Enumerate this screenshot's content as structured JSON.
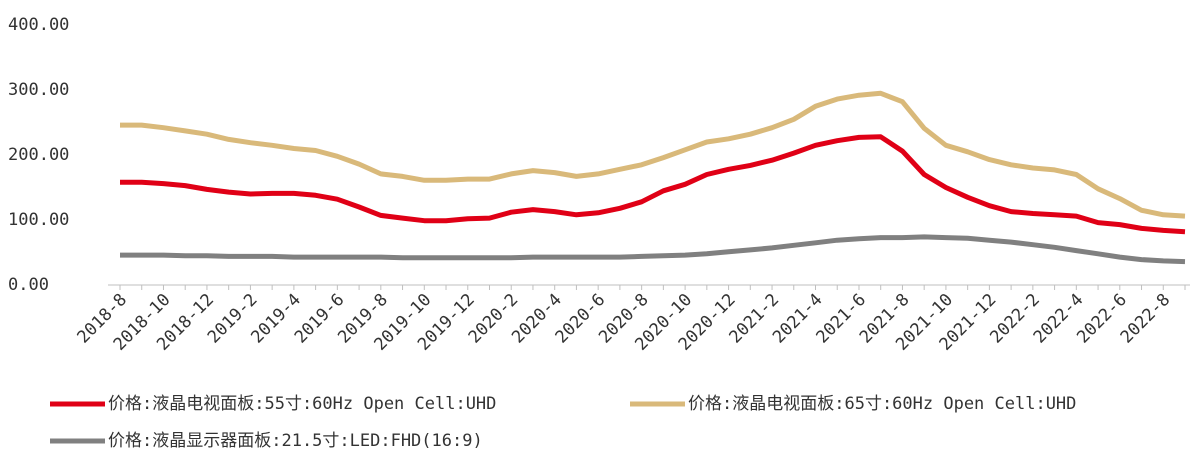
{
  "chart_data": {
    "type": "line",
    "categories": [
      "2018-8",
      null,
      "2018-10",
      null,
      "2018-12",
      null,
      "2019-2",
      null,
      "2019-4",
      null,
      "2019-6",
      null,
      "2019-8",
      null,
      "2019-10",
      null,
      "2019-12",
      null,
      "2020-2",
      null,
      "2020-4",
      null,
      "2020-6",
      null,
      "2020-8",
      null,
      "2020-10",
      null,
      "2020-12",
      null,
      "2021-2",
      null,
      "2021-4",
      null,
      "2021-6",
      null,
      "2021-8",
      null,
      "2021-10",
      null,
      "2021-12",
      null,
      "2022-2",
      null,
      "2022-4",
      null,
      "2022-6",
      null,
      "2022-8",
      null
    ],
    "series": [
      {
        "name": "价格:液晶电视面板:55寸:60Hz Open Cell:UHD",
        "color": "#e00016",
        "values": [
          158,
          158,
          156,
          153,
          147,
          143,
          140,
          141,
          141,
          138,
          132,
          120,
          107,
          103,
          99,
          99,
          102,
          103,
          112,
          116,
          113,
          108,
          111,
          118,
          128,
          145,
          155,
          170,
          178,
          184,
          192,
          203,
          215,
          222,
          227,
          228,
          206,
          170,
          150,
          135,
          122,
          113,
          110,
          108,
          106,
          96,
          93,
          87,
          84,
          82
        ]
      },
      {
        "name": "价格:液晶电视面板:65寸:60Hz Open Cell:UHD",
        "color": "#d9b97a",
        "values": [
          246,
          246,
          242,
          237,
          232,
          224,
          219,
          215,
          210,
          207,
          198,
          186,
          171,
          167,
          161,
          161,
          163,
          163,
          171,
          176,
          173,
          167,
          171,
          178,
          185,
          196,
          208,
          220,
          225,
          232,
          242,
          255,
          275,
          286,
          292,
          295,
          282,
          241,
          215,
          205,
          193,
          185,
          180,
          177,
          170,
          148,
          133,
          115,
          108,
          106
        ]
      },
      {
        "name": "价格:液晶显示器面板:21.5寸:LED:FHD(16:9)",
        "color": "#808080",
        "values": [
          46,
          46,
          46,
          45,
          45,
          44,
          44,
          44,
          43,
          43,
          43,
          43,
          43,
          42,
          42,
          42,
          42,
          42,
          42,
          43,
          43,
          43,
          43,
          43,
          44,
          45,
          46,
          48,
          51,
          54,
          57,
          61,
          65,
          69,
          71,
          73,
          73,
          74,
          73,
          72,
          69,
          66,
          62,
          58,
          53,
          48,
          43,
          39,
          37,
          36
        ]
      }
    ],
    "ylim": [
      0,
      400
    ],
    "yticks": [
      {
        "value": 0,
        "label": "0.00"
      },
      {
        "value": 100,
        "label": "100.00"
      },
      {
        "value": 200,
        "label": "200.00"
      },
      {
        "value": 300,
        "label": "300.00"
      },
      {
        "value": 400,
        "label": "400.00"
      }
    ]
  }
}
